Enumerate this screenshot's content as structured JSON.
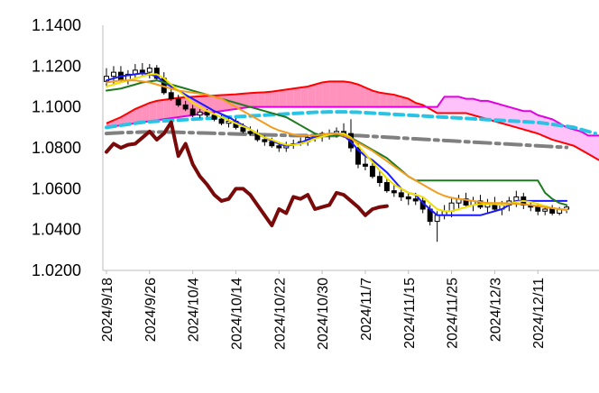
{
  "chart_data": {
    "type": "line",
    "title": "",
    "xlabel": "",
    "ylabel": "",
    "ylim": [
      1.02,
      1.14
    ],
    "y_ticks": [
      "1.1400",
      "1.1200",
      "1.1000",
      "1.0800",
      "1.0600",
      "1.0400",
      "1.0200"
    ],
    "y_tick_values": [
      1.14,
      1.12,
      1.1,
      1.08,
      1.06,
      1.04,
      1.02
    ],
    "x_tick_labels": [
      "2024/9/18",
      "2024/9/26",
      "2024/10/4",
      "2024/10/14",
      "2024/10/22",
      "2024/10/30",
      "2024/11/7",
      "2024/11/15",
      "2024/11/25",
      "2024/12/3",
      "2024/12/11"
    ],
    "x_tick_index": [
      0,
      6,
      12,
      18,
      24,
      30,
      36,
      42,
      48,
      54,
      60
    ],
    "n_days": 69,
    "candles_ohlc": [
      [
        1.1125,
        1.119,
        1.11,
        1.115
      ],
      [
        1.115,
        1.12,
        1.111,
        1.117
      ],
      [
        1.117,
        1.12,
        1.112,
        1.113
      ],
      [
        1.113,
        1.118,
        1.111,
        1.116
      ],
      [
        1.116,
        1.121,
        1.114,
        1.118
      ],
      [
        1.118,
        1.1215,
        1.115,
        1.117
      ],
      [
        1.117,
        1.121,
        1.114,
        1.119
      ],
      [
        1.119,
        1.1205,
        1.113,
        1.114
      ],
      [
        1.114,
        1.117,
        1.106,
        1.107
      ],
      [
        1.107,
        1.11,
        1.103,
        1.104
      ],
      [
        1.104,
        1.106,
        1.1,
        1.101
      ],
      [
        1.101,
        1.103,
        1.098,
        1.099
      ],
      [
        1.099,
        1.101,
        1.095,
        1.096
      ],
      [
        1.096,
        1.099,
        1.0945,
        1.0975
      ],
      [
        1.0975,
        1.099,
        1.095,
        1.096
      ],
      [
        1.096,
        1.098,
        1.093,
        1.094
      ],
      [
        1.094,
        1.096,
        1.091,
        1.092
      ],
      [
        1.092,
        1.0945,
        1.09,
        1.093
      ],
      [
        1.093,
        1.0945,
        1.089,
        1.09
      ],
      [
        1.09,
        1.092,
        1.087,
        1.088
      ],
      [
        1.088,
        1.0905,
        1.086,
        1.087
      ],
      [
        1.087,
        1.089,
        1.083,
        1.084
      ],
      [
        1.084,
        1.086,
        1.081,
        1.083
      ],
      [
        1.083,
        1.085,
        1.08,
        1.081
      ],
      [
        1.081,
        1.083,
        1.078,
        1.08
      ],
      [
        1.08,
        1.083,
        1.078,
        1.0815
      ],
      [
        1.0815,
        1.084,
        1.0795,
        1.082
      ],
      [
        1.082,
        1.085,
        1.081,
        1.083
      ],
      [
        1.083,
        1.086,
        1.081,
        1.085
      ],
      [
        1.085,
        1.087,
        1.083,
        1.086
      ],
      [
        1.086,
        1.088,
        1.083,
        1.087
      ],
      [
        1.087,
        1.089,
        1.084,
        1.086
      ],
      [
        1.086,
        1.09,
        1.085,
        1.088
      ],
      [
        1.088,
        1.092,
        1.085,
        1.087
      ],
      [
        1.087,
        1.094,
        1.078,
        1.08
      ],
      [
        1.08,
        1.083,
        1.07,
        1.072
      ],
      [
        1.072,
        1.076,
        1.069,
        1.071
      ],
      [
        1.071,
        1.073,
        1.065,
        1.066
      ],
      [
        1.066,
        1.069,
        1.061,
        1.063
      ],
      [
        1.063,
        1.065,
        1.058,
        1.059
      ],
      [
        1.059,
        1.062,
        1.056,
        1.058
      ],
      [
        1.058,
        1.06,
        1.054,
        1.056
      ],
      [
        1.056,
        1.058,
        1.052,
        1.055
      ],
      [
        1.055,
        1.058,
        1.052,
        1.054
      ],
      [
        1.054,
        1.056,
        1.048,
        1.05
      ],
      [
        1.05,
        1.052,
        1.042,
        1.044
      ],
      [
        1.044,
        1.049,
        1.034,
        1.047
      ],
      [
        1.047,
        1.052,
        1.045,
        1.049
      ],
      [
        1.049,
        1.056,
        1.046,
        1.053
      ],
      [
        1.053,
        1.057,
        1.05,
        1.055
      ],
      [
        1.055,
        1.058,
        1.051,
        1.052
      ],
      [
        1.052,
        1.056,
        1.049,
        1.054
      ],
      [
        1.054,
        1.057,
        1.05,
        1.051
      ],
      [
        1.051,
        1.055,
        1.048,
        1.053
      ],
      [
        1.053,
        1.056,
        1.049,
        1.05
      ],
      [
        1.05,
        1.054,
        1.047,
        1.052
      ],
      [
        1.052,
        1.056,
        1.049,
        1.054
      ],
      [
        1.054,
        1.059,
        1.051,
        1.056
      ],
      [
        1.056,
        1.058,
        1.05,
        1.052
      ],
      [
        1.052,
        1.054,
        1.049,
        1.051
      ],
      [
        1.051,
        1.053,
        1.047,
        1.049
      ],
      [
        1.049,
        1.051,
        1.047,
        1.05
      ],
      [
        1.05,
        1.052,
        1.047,
        1.048
      ],
      [
        1.048,
        1.051,
        1.047,
        1.05
      ],
      [
        1.05,
        1.052,
        1.048,
        1.051
      ]
    ],
    "series": [
      {
        "name": "tenkan",
        "color": "#1a1aff",
        "width": 2,
        "dash": "",
        "start": 0,
        "values": [
          1.113,
          1.114,
          1.115,
          1.1155,
          1.116,
          1.1165,
          1.116,
          1.115,
          1.112,
          1.11,
          1.108,
          1.106,
          1.104,
          1.102,
          1.1,
          1.098,
          1.0965,
          1.095,
          1.093,
          1.091,
          1.089,
          1.087,
          1.085,
          1.0835,
          1.082,
          1.081,
          1.0815,
          1.0825,
          1.084,
          1.0855,
          1.086,
          1.087,
          1.087,
          1.086,
          1.083,
          1.079,
          1.076,
          1.074,
          1.071,
          1.068,
          1.064,
          1.06,
          1.058,
          1.057,
          1.053,
          1.05,
          1.047,
          1.047,
          1.047,
          1.047,
          1.047,
          1.047,
          1.047,
          1.048,
          1.049,
          1.05,
          1.052,
          1.054,
          1.054,
          1.054,
          1.054,
          1.054,
          1.054,
          1.054,
          1.054
        ]
      },
      {
        "name": "kijun",
        "color": "#1f7a1f",
        "width": 2,
        "dash": "",
        "start": 0,
        "values": [
          1.108,
          1.1085,
          1.109,
          1.11,
          1.111,
          1.112,
          1.1125,
          1.113,
          1.112,
          1.111,
          1.11,
          1.109,
          1.108,
          1.107,
          1.106,
          1.105,
          1.104,
          1.103,
          1.102,
          1.101,
          1.1,
          1.099,
          1.098,
          1.097,
          1.096,
          1.095,
          1.093,
          1.091,
          1.089,
          1.087,
          1.086,
          1.086,
          1.086,
          1.086,
          1.085,
          1.083,
          1.081,
          1.079,
          1.077,
          1.075,
          1.072,
          1.069,
          1.066,
          1.064,
          1.064,
          1.064,
          1.064,
          1.064,
          1.064,
          1.064,
          1.064,
          1.064,
          1.064,
          1.064,
          1.064,
          1.064,
          1.064,
          1.064,
          1.064,
          1.064,
          1.064,
          1.058,
          1.055,
          1.053,
          1.052
        ]
      },
      {
        "name": "ma-short",
        "color": "#f2e000",
        "width": 2,
        "dash": "",
        "start": 0,
        "values": [
          1.11,
          1.111,
          1.112,
          1.113,
          1.114,
          1.115,
          1.116,
          1.116,
          1.114,
          1.111,
          1.108,
          1.105,
          1.102,
          1.1,
          1.098,
          1.0965,
          1.095,
          1.0935,
          1.092,
          1.0905,
          1.089,
          1.087,
          1.085,
          1.084,
          1.0825,
          1.0815,
          1.0815,
          1.082,
          1.083,
          1.0845,
          1.0855,
          1.0865,
          1.087,
          1.087,
          1.085,
          1.081,
          1.077,
          1.073,
          1.069,
          1.065,
          1.062,
          1.06,
          1.058,
          1.057,
          1.056,
          1.053,
          1.05,
          1.049,
          1.049,
          1.05,
          1.051,
          1.052,
          1.0525,
          1.0525,
          1.0525,
          1.052,
          1.0525,
          1.0535,
          1.054,
          1.0535,
          1.0525,
          1.0515,
          1.0505,
          1.05,
          1.05
        ]
      },
      {
        "name": "ma-mid",
        "color": "#f39c1f",
        "width": 2,
        "dash": "",
        "start": 0,
        "values": [
          1.112,
          1.1125,
          1.113,
          1.113,
          1.113,
          1.1125,
          1.112,
          1.111,
          1.11,
          1.109,
          1.108,
          1.1075,
          1.107,
          1.1065,
          1.106,
          1.105,
          1.104,
          1.102,
          1.1,
          1.098,
          1.096,
          1.094,
          1.092,
          1.09,
          1.0885,
          1.0875,
          1.0865,
          1.086,
          1.086,
          1.086,
          1.0865,
          1.087,
          1.087,
          1.086,
          1.0845,
          1.0825,
          1.0805,
          1.0785,
          1.076,
          1.0735,
          1.071,
          1.0685,
          1.066,
          1.064,
          1.062,
          1.06,
          1.058,
          1.0565,
          1.0555,
          1.055,
          1.0545,
          1.054,
          1.0535,
          1.053,
          1.053,
          1.053,
          1.0528,
          1.0526,
          1.0524,
          1.052,
          1.0515,
          1.051,
          1.0505,
          1.05,
          1.0495
        ]
      },
      {
        "name": "chikou",
        "color": "#7a0a0a",
        "width": 4,
        "dash": "",
        "start": 0,
        "values": [
          1.078,
          1.082,
          1.08,
          1.0815,
          1.082,
          1.085,
          1.088,
          1.084,
          1.087,
          1.0925,
          1.076,
          1.082,
          1.072,
          1.066,
          1.062,
          1.057,
          1.054,
          1.055,
          1.06,
          1.06,
          1.057,
          1.052,
          1.047,
          1.042,
          1.05,
          1.048,
          1.056,
          1.055,
          1.057,
          1.05,
          1.051,
          1.052,
          1.058,
          1.057,
          1.054,
          1.051,
          1.047,
          1.05,
          1.051,
          1.0515
        ]
      },
      {
        "name": "ma-long-grey",
        "color": "#808080",
        "width": 4,
        "dash": "18 6 4 6",
        "start": 0,
        "values": [
          1.087,
          1.0872,
          1.0874,
          1.0875,
          1.0876,
          1.0877,
          1.0877,
          1.0877,
          1.0877,
          1.0877,
          1.0876,
          1.0875,
          1.0874,
          1.0873,
          1.0872,
          1.0871,
          1.087,
          1.0869,
          1.0868,
          1.0867,
          1.0866,
          1.0865,
          1.0864,
          1.0863,
          1.0862,
          1.0861,
          1.086,
          1.086,
          1.086,
          1.086,
          1.086,
          1.086,
          1.086,
          1.086,
          1.086,
          1.086,
          1.0858,
          1.0856,
          1.0854,
          1.0852,
          1.085,
          1.0848,
          1.0846,
          1.0844,
          1.0842,
          1.084,
          1.0838,
          1.0836,
          1.0834,
          1.0832,
          1.083,
          1.0828,
          1.0826,
          1.0824,
          1.0822,
          1.082,
          1.0818,
          1.0816,
          1.0814,
          1.0812,
          1.081,
          1.0808,
          1.0806,
          1.0804,
          1.0802
        ]
      },
      {
        "name": "ma-long-cyan",
        "color": "#29c3e6",
        "width": 4,
        "dash": "10 6",
        "start": 0,
        "values": [
          1.09,
          1.0905,
          1.091,
          1.0915,
          1.092,
          1.0925,
          1.0928,
          1.093,
          1.0932,
          1.0934,
          1.0936,
          1.0938,
          1.094,
          1.0942,
          1.0944,
          1.0946,
          1.0948,
          1.095,
          1.0952,
          1.0954,
          1.0956,
          1.0958,
          1.096,
          1.0962,
          1.0964,
          1.0966,
          1.0968,
          1.097,
          1.0972,
          1.0974,
          1.0975,
          1.0976,
          1.0976,
          1.0976,
          1.0975,
          1.0974,
          1.0972,
          1.097,
          1.0968,
          1.0966,
          1.0964,
          1.0962,
          1.096,
          1.0958,
          1.0956,
          1.0954,
          1.0952,
          1.095,
          1.0948,
          1.0946,
          1.0944,
          1.0942,
          1.094,
          1.0938,
          1.0936,
          1.0934,
          1.0932,
          1.093,
          1.0928,
          1.0926,
          1.0924,
          1.092,
          1.0915,
          1.091,
          1.0905,
          1.09,
          1.089,
          1.088,
          1.087
        ]
      }
    ],
    "cloud": {
      "span_a_color": "#ff0000",
      "span_b_color": "#e000e0",
      "fill_bullish": "#ff7fb2",
      "fill_bearish": "#ff4df0",
      "span_a": [
        1.092,
        1.0935,
        1.095,
        1.097,
        1.099,
        1.1005,
        1.102,
        1.103,
        1.1035,
        1.104,
        1.1045,
        1.1048,
        1.105,
        1.1052,
        1.1054,
        1.1056,
        1.1058,
        1.106,
        1.1062,
        1.1065,
        1.1068,
        1.107,
        1.1072,
        1.1075,
        1.108,
        1.1085,
        1.109,
        1.1095,
        1.11,
        1.111,
        1.112,
        1.1125,
        1.1125,
        1.1125,
        1.112,
        1.111,
        1.1095,
        1.108,
        1.107,
        1.1065,
        1.106,
        1.105,
        1.104,
        1.102,
        1.101,
        1.099,
        1.097,
        1.097,
        1.097,
        1.097,
        1.097,
        1.096,
        1.095,
        1.094,
        1.093,
        1.092,
        1.091,
        1.09,
        1.089,
        1.088,
        1.087,
        1.0855,
        1.084,
        1.083,
        1.082,
        1.081,
        1.079,
        1.077,
        1.075,
        1.073,
        1.07
      ],
      "span_b": [
        1.09,
        1.0905,
        1.091,
        1.0915,
        1.092,
        1.0925,
        1.093,
        1.0935,
        1.094,
        1.0945,
        1.095,
        1.0955,
        1.096,
        1.0965,
        1.097,
        1.0975,
        1.098,
        1.0985,
        1.099,
        1.0995,
        1.1,
        1.1,
        1.1,
        1.1,
        1.1,
        1.1,
        1.1,
        1.1,
        1.1,
        1.1,
        1.1,
        1.1,
        1.1,
        1.1,
        1.1,
        1.1,
        1.1,
        1.1,
        1.1,
        1.1,
        1.1,
        1.1,
        1.1,
        1.1,
        1.1,
        1.1,
        1.1,
        1.105,
        1.105,
        1.105,
        1.104,
        1.104,
        1.103,
        1.103,
        1.102,
        1.101,
        1.1,
        1.099,
        1.098,
        1.098,
        1.096,
        1.095,
        1.094,
        1.092,
        1.09,
        1.089,
        1.088,
        1.086,
        1.086,
        1.086,
        1.086
      ]
    }
  }
}
